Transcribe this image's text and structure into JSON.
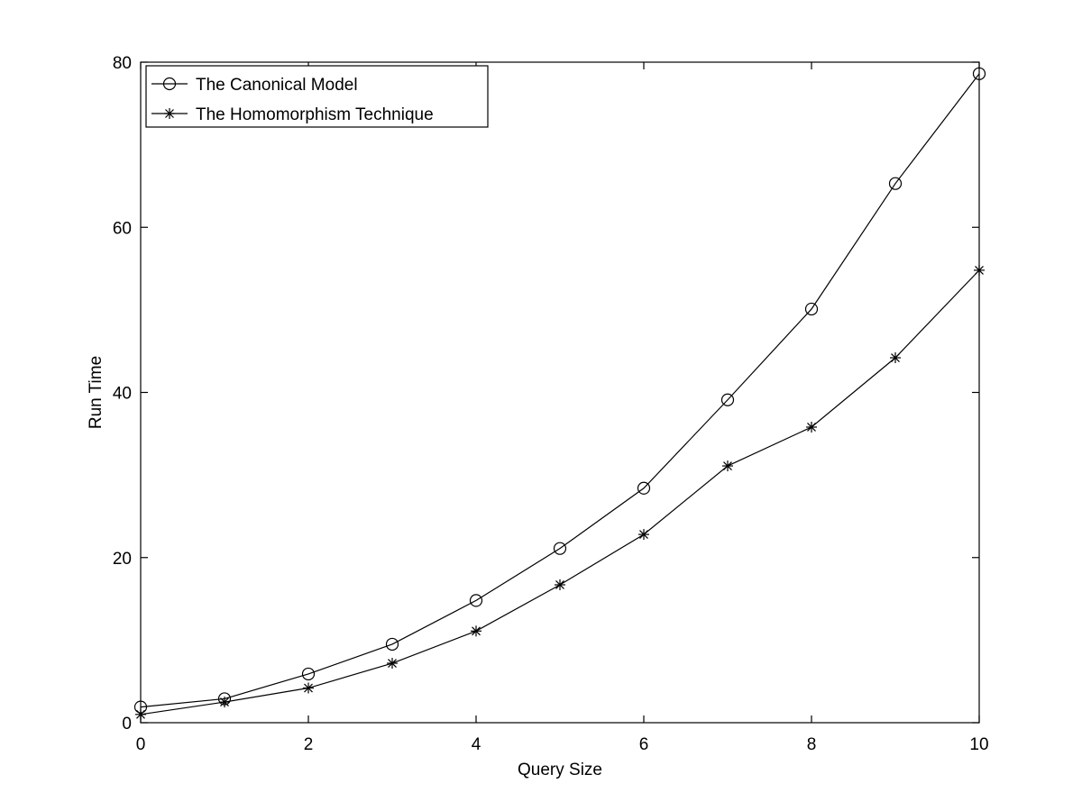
{
  "chart_data": {
    "type": "line",
    "xlabel": "Query Size",
    "ylabel": "Run Time",
    "xlim": [
      0,
      10
    ],
    "ylim": [
      0,
      80
    ],
    "xticks": [
      0,
      2,
      4,
      6,
      8,
      10
    ],
    "yticks": [
      0,
      20,
      40,
      60,
      80
    ],
    "x": [
      0,
      1,
      2,
      3,
      4,
      5,
      6,
      7,
      8,
      9,
      10
    ],
    "grid": false,
    "legend_position": "top-left",
    "series": [
      {
        "name": "The Canonical Model",
        "marker": "circle",
        "color": "#000000",
        "values": [
          1.9,
          2.9,
          5.9,
          9.5,
          14.8,
          21.1,
          28.4,
          39.1,
          50.1,
          65.3,
          78.6
        ]
      },
      {
        "name": "The Homomorphism Technique",
        "marker": "asterisk",
        "color": "#000000",
        "values": [
          1.0,
          2.5,
          4.2,
          7.2,
          11.1,
          16.7,
          22.8,
          31.1,
          35.8,
          44.2,
          54.8
        ]
      }
    ]
  }
}
